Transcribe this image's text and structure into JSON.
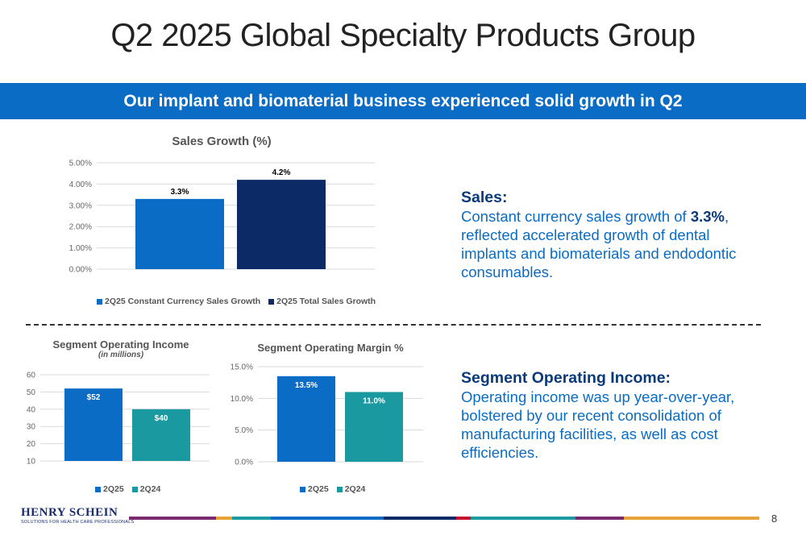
{
  "title": "Q2 2025 Global Specialty Products Group",
  "banner": "Our implant and biomaterial business experienced solid growth in Q2",
  "colors": {
    "blue": "#0a6cc4",
    "navy": "#0b2a66",
    "teal": "#1a9aa0",
    "banner": "#0a6cc4"
  },
  "chart_data": [
    {
      "type": "bar",
      "title": "Sales Growth (%)",
      "categories": [
        ""
      ],
      "series": [
        {
          "name": "2Q25 Constant Currency Sales Growth",
          "values": [
            3.3
          ],
          "label": "3.3%",
          "color": "#0a6cc4"
        },
        {
          "name": "2Q25 Total Sales Growth",
          "values": [
            4.2
          ],
          "label": "4.2%",
          "color": "#0b2a66"
        }
      ],
      "yticks": [
        "0.00%",
        "1.00%",
        "2.00%",
        "3.00%",
        "4.00%",
        "5.00%"
      ],
      "ylim": [
        0,
        5
      ],
      "grid": true,
      "legend": "bottom"
    },
    {
      "type": "bar",
      "title": "Segment Operating Income",
      "subtitle": "(in millions)",
      "categories": [
        ""
      ],
      "series": [
        {
          "name": "2Q25",
          "values": [
            52
          ],
          "label": "$52",
          "color": "#0a6cc4"
        },
        {
          "name": "2Q24",
          "values": [
            40
          ],
          "label": "$40",
          "color": "#1a9aa0"
        }
      ],
      "yticks": [
        "10",
        "20",
        "30",
        "40",
        "50",
        "60"
      ],
      "ylim": [
        10,
        60
      ],
      "grid": true,
      "legend": "bottom"
    },
    {
      "type": "bar",
      "title": "Segment Operating Margin %",
      "categories": [
        ""
      ],
      "series": [
        {
          "name": "2Q25",
          "values": [
            13.5
          ],
          "label": "13.5%",
          "color": "#0a6cc4"
        },
        {
          "name": "2Q24",
          "values": [
            11.0
          ],
          "label": "11.0%",
          "color": "#1a9aa0"
        }
      ],
      "yticks": [
        "0.0%",
        "5.0%",
        "10.0%",
        "15.0%"
      ],
      "ylim": [
        0,
        15
      ],
      "grid": true,
      "legend": "bottom"
    }
  ],
  "sales_text": {
    "heading": "Sales:",
    "body_pre": "Constant currency sales growth of ",
    "body_bold": "3.3%",
    "body_post": ", reflected accelerated growth of dental implants and biomaterials and endodontic consumables."
  },
  "income_text": {
    "heading": "Segment Operating Income:",
    "body": "Operating income was up year-over-year, bolstered by our recent consolidation of manufacturing facilities, as well as cost efficiencies."
  },
  "logo": {
    "name": "HENRY SCHEIN",
    "tagline": "SOLUTIONS FOR HEALTH CARE PROFESSIONALS"
  },
  "page_number": "8",
  "footer_colors": [
    "#7a2a6e",
    "#e8a23a",
    "#1a9aa0",
    "#0a6cc4",
    "#0b2a66",
    "#c8102e",
    "#1a9aa0",
    "#7a2a6e",
    "#e8a23a"
  ]
}
